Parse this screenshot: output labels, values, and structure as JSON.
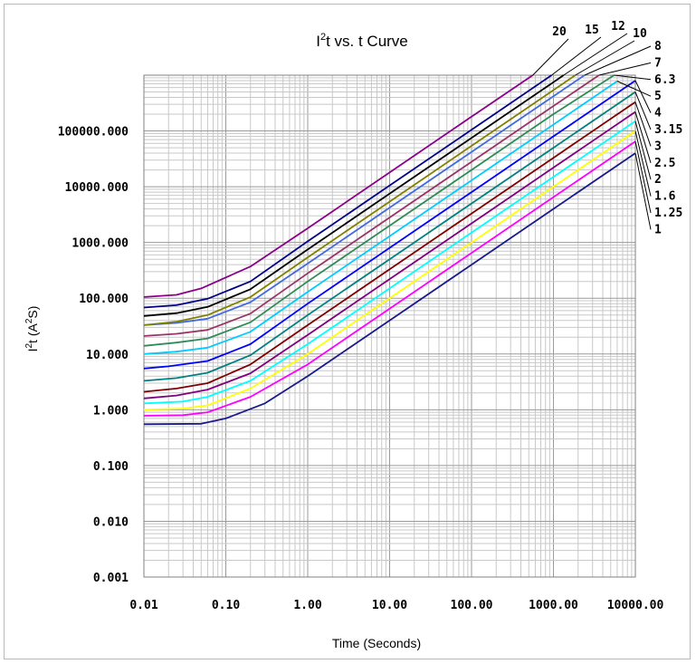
{
  "chart_data": {
    "type": "line",
    "title_main": "I",
    "title_sup": "2",
    "title_rest": "t vs. t Curve",
    "xlabel": "Time (Seconds)",
    "ylabel_main": "I",
    "ylabel_sup": "2",
    "ylabel_rest": "t (A",
    "ylabel_sup2": "2",
    "ylabel_end": "S)",
    "x_scale": "log",
    "y_scale": "log",
    "xlim": [
      0.01,
      10000
    ],
    "ylim": [
      0.001,
      1000000
    ],
    "x_ticks": [
      {
        "value": 0.01,
        "label": "0.01"
      },
      {
        "value": 0.1,
        "label": "0.10"
      },
      {
        "value": 1,
        "label": "1.00"
      },
      {
        "value": 10,
        "label": "10.00"
      },
      {
        "value": 100,
        "label": "100.00"
      },
      {
        "value": 1000,
        "label": "1000.00"
      },
      {
        "value": 10000,
        "label": "10000.00"
      }
    ],
    "y_ticks": [
      {
        "value": 0.001,
        "label": "0.001"
      },
      {
        "value": 0.01,
        "label": "0.010"
      },
      {
        "value": 0.1,
        "label": "0.100"
      },
      {
        "value": 1,
        "label": "1.000"
      },
      {
        "value": 10,
        "label": "10.000"
      },
      {
        "value": 100,
        "label": "100.000"
      },
      {
        "value": 1000,
        "label": "1000.000"
      },
      {
        "value": 10000,
        "label": "10000.000"
      },
      {
        "value": 100000,
        "label": "100000.000"
      }
    ],
    "grid": true,
    "series": [
      {
        "name": "1",
        "color": "#1a1a8c",
        "points": [
          [
            0.01,
            0.55
          ],
          [
            0.05,
            0.56
          ],
          [
            0.1,
            0.7
          ],
          [
            0.3,
            1.3
          ],
          [
            1,
            4
          ],
          [
            10,
            40
          ],
          [
            100,
            400
          ],
          [
            1000,
            4000
          ],
          [
            10000,
            40000
          ]
        ]
      },
      {
        "name": "1.25",
        "color": "#ff00ff",
        "points": [
          [
            0.01,
            0.78
          ],
          [
            0.03,
            0.8
          ],
          [
            0.06,
            0.9
          ],
          [
            0.2,
            1.7
          ],
          [
            1,
            6.5
          ],
          [
            10,
            65
          ],
          [
            100,
            650
          ],
          [
            1000,
            6500
          ],
          [
            10000,
            65000
          ]
        ]
      },
      {
        "name": "1.6",
        "color": "#ffff00",
        "points": [
          [
            0.01,
            1.0
          ],
          [
            0.03,
            1.05
          ],
          [
            0.06,
            1.2
          ],
          [
            0.2,
            2.4
          ],
          [
            1,
            10
          ],
          [
            10,
            100
          ],
          [
            100,
            1000
          ],
          [
            1000,
            10000
          ],
          [
            10000,
            100000
          ]
        ]
      },
      {
        "name": "2",
        "color": "#00ffff",
        "points": [
          [
            0.01,
            1.3
          ],
          [
            0.03,
            1.4
          ],
          [
            0.06,
            1.7
          ],
          [
            0.2,
            3.3
          ],
          [
            1,
            15
          ],
          [
            10,
            150
          ],
          [
            100,
            1500
          ],
          [
            1000,
            15000
          ],
          [
            10000,
            150000
          ]
        ]
      },
      {
        "name": "2.5",
        "color": "#800080",
        "points": [
          [
            0.01,
            1.6
          ],
          [
            0.025,
            1.8
          ],
          [
            0.06,
            2.3
          ],
          [
            0.2,
            4.5
          ],
          [
            1,
            22
          ],
          [
            10,
            220
          ],
          [
            100,
            2200
          ],
          [
            1000,
            22000
          ],
          [
            10000,
            220000
          ]
        ]
      },
      {
        "name": "3",
        "color": "#800000",
        "points": [
          [
            0.01,
            2.1
          ],
          [
            0.025,
            2.4
          ],
          [
            0.06,
            3
          ],
          [
            0.2,
            6.5
          ],
          [
            1,
            33
          ],
          [
            10,
            330
          ],
          [
            100,
            3300
          ],
          [
            1000,
            33000
          ],
          [
            10000,
            330000
          ]
        ]
      },
      {
        "name": "3.15",
        "color": "#008080",
        "points": [
          [
            0.01,
            3.3
          ],
          [
            0.025,
            3.7
          ],
          [
            0.06,
            4.6
          ],
          [
            0.2,
            9.5
          ],
          [
            1,
            50
          ],
          [
            10,
            500
          ],
          [
            100,
            5000
          ],
          [
            1000,
            50000
          ],
          [
            10000,
            500000
          ]
        ]
      },
      {
        "name": "4",
        "color": "#0000ff",
        "points": [
          [
            0.01,
            5.5
          ],
          [
            0.02,
            6
          ],
          [
            0.06,
            7.5
          ],
          [
            0.2,
            15
          ],
          [
            1,
            80
          ],
          [
            10,
            800
          ],
          [
            100,
            8000
          ],
          [
            1000,
            80000
          ],
          [
            10000,
            800000
          ]
        ]
      },
      {
        "name": "5",
        "color": "#00ccff",
        "points": [
          [
            0.01,
            10
          ],
          [
            0.025,
            11
          ],
          [
            0.06,
            13
          ],
          [
            0.2,
            25
          ],
          [
            1,
            130
          ],
          [
            10,
            1300
          ],
          [
            100,
            13000
          ],
          [
            1000,
            130000
          ],
          [
            6000,
            780000
          ]
        ]
      },
      {
        "name": "6.3",
        "color": "#2e8b57",
        "points": [
          [
            0.01,
            14
          ],
          [
            0.025,
            16
          ],
          [
            0.06,
            19
          ],
          [
            0.2,
            37
          ],
          [
            1,
            200
          ],
          [
            10,
            2000
          ],
          [
            100,
            20000
          ],
          [
            1000,
            200000
          ],
          [
            5500,
            1000000
          ]
        ]
      },
      {
        "name": "7",
        "color": "#993366",
        "points": [
          [
            0.01,
            21
          ],
          [
            0.025,
            23
          ],
          [
            0.06,
            27
          ],
          [
            0.2,
            53
          ],
          [
            1,
            280
          ],
          [
            10,
            2800
          ],
          [
            100,
            28000
          ],
          [
            1000,
            280000
          ],
          [
            3600,
            1000000
          ]
        ]
      },
      {
        "name": "8",
        "color": "#4169e1",
        "points": [
          [
            0.01,
            33
          ],
          [
            0.025,
            36
          ],
          [
            0.06,
            43
          ],
          [
            0.2,
            85
          ],
          [
            1,
            420
          ],
          [
            10,
            4200
          ],
          [
            100,
            42000
          ],
          [
            1000,
            420000
          ],
          [
            2400,
            1000000
          ]
        ]
      },
      {
        "name": "10",
        "color": "#808000",
        "points": [
          [
            0.01,
            33
          ],
          [
            0.025,
            38
          ],
          [
            0.06,
            50
          ],
          [
            0.2,
            105
          ],
          [
            1,
            540
          ],
          [
            10,
            5400
          ],
          [
            100,
            54000
          ],
          [
            1000,
            540000
          ],
          [
            1850,
            1000000
          ]
        ]
      },
      {
        "name": "12",
        "color": "#000000",
        "points": [
          [
            0.01,
            48
          ],
          [
            0.025,
            54
          ],
          [
            0.06,
            70
          ],
          [
            0.2,
            145
          ],
          [
            1,
            750
          ],
          [
            10,
            7500
          ],
          [
            100,
            75000
          ],
          [
            1000,
            750000
          ],
          [
            1330,
            1000000
          ]
        ]
      },
      {
        "name": "15",
        "color": "#00008b",
        "points": [
          [
            0.01,
            68
          ],
          [
            0.025,
            75
          ],
          [
            0.06,
            98
          ],
          [
            0.2,
            200
          ],
          [
            1,
            1050
          ],
          [
            10,
            10500
          ],
          [
            100,
            105000
          ],
          [
            950,
            1000000
          ]
        ]
      },
      {
        "name": "20",
        "color": "#8b008b",
        "points": [
          [
            0.01,
            105
          ],
          [
            0.025,
            115
          ],
          [
            0.05,
            150
          ],
          [
            0.2,
            370
          ],
          [
            1,
            1800
          ],
          [
            10,
            18000
          ],
          [
            100,
            180000
          ],
          [
            560,
            1000000
          ]
        ]
      }
    ],
    "right_labels": [
      "20",
      "15",
      "12",
      "10",
      "8",
      "7",
      "6.3",
      "5",
      "4",
      "3.15",
      "3",
      "2.5",
      "2",
      "1.6",
      "1.25",
      "1"
    ]
  }
}
